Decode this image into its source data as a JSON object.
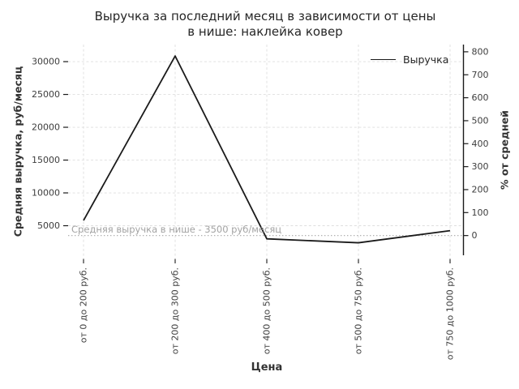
{
  "chart_data": {
    "type": "line",
    "title": "Выручка за последний месяц в зависимости от цены в нише: наклейка ковер",
    "title_lines": [
      "Выручка за последний месяц в зависимости от цены",
      "в нише: наклейка ковер"
    ],
    "categories": [
      "от 0 до 200 руб.",
      "от 200 до 300 руб.",
      "от 400 до 500 руб.",
      "от 500 до 750 руб.",
      "от 750 до 1000 руб."
    ],
    "series": [
      {
        "name": "Выручка",
        "values": [
          5800,
          30860,
          3000,
          2400,
          4250
        ],
        "color": "#1a1a1a"
      }
    ],
    "xlabel": "Цена",
    "ylabel_left": "Средняя выручка, руб/месяц",
    "ylabel_right": "% от средней",
    "y_left_ticks": [
      5000,
      10000,
      15000,
      20000,
      25000,
      30000
    ],
    "y_left_lim": [
      0,
      32600
    ],
    "y_right_ticks": [
      0,
      100,
      200,
      300,
      400,
      500,
      600,
      700,
      800
    ],
    "average_line": {
      "value": 3500,
      "label": "Средняя выручка в нише - 3500 руб/месяц",
      "style": "dotted"
    },
    "legend": {
      "position": "upper right",
      "entries": [
        "Выручка"
      ],
      "frame": false
    },
    "grid": true,
    "colors": {
      "line": "#1a1a1a",
      "grid": "#dedede",
      "average_line": "#b0b0b0",
      "annotation_text": "#a3a3a3",
      "tick_text": "#3d3d3d",
      "spine": "#1a1a1a"
    }
  }
}
